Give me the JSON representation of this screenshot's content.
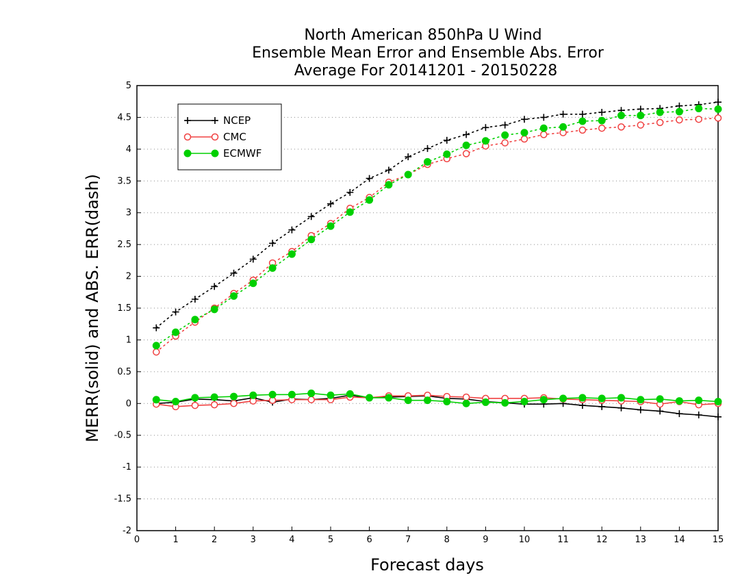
{
  "chart_data": {
    "type": "line",
    "title_lines": [
      "North American 850hPa U Wind",
      "Ensemble Mean Error and Ensemble Abs. Error",
      "Average For 20141201 - 20150228"
    ],
    "xlabel": "Forecast days",
    "ylabel": "MERR(solid) and ABS. ERR(dash)",
    "xlim": [
      0,
      15
    ],
    "ylim": [
      -2,
      5
    ],
    "x_ticks": [
      0,
      1,
      2,
      3,
      4,
      5,
      6,
      7,
      8,
      9,
      10,
      11,
      12,
      13,
      14,
      15
    ],
    "y_ticks": [
      -2,
      -1.5,
      -1,
      -0.5,
      0,
      0.5,
      1,
      1.5,
      2,
      2.5,
      3,
      3.5,
      4,
      4.5,
      5
    ],
    "y_tick_labels": [
      "-2",
      "-1.5",
      "-1",
      "-0.5",
      "0",
      "0.5",
      "1",
      "1.5",
      "2",
      "2.5",
      "3",
      "3.5",
      "4",
      "4.5",
      "5"
    ],
    "grid": "horizontal dotted",
    "legend_position": "top-left",
    "x": [
      0.5,
      1,
      1.5,
      2,
      2.5,
      3,
      3.5,
      4,
      4.5,
      5,
      5.5,
      6,
      6.5,
      7,
      7.5,
      8,
      8.5,
      9,
      9.5,
      10,
      10.5,
      11,
      11.5,
      12,
      12.5,
      13,
      13.5,
      14,
      14.5,
      15
    ],
    "series": [
      {
        "name": "NCEP",
        "color": "#000000",
        "marker": "plus",
        "abs_error": [
          1.19,
          1.44,
          1.64,
          1.84,
          2.05,
          2.27,
          2.52,
          2.73,
          2.94,
          3.14,
          3.32,
          3.54,
          3.67,
          3.88,
          4.01,
          4.14,
          4.23,
          4.34,
          4.38,
          4.47,
          4.5,
          4.55,
          4.55,
          4.58,
          4.61,
          4.63,
          4.64,
          4.68,
          4.7,
          4.74
        ],
        "mean_error": [
          0.0,
          0.02,
          0.07,
          0.06,
          0.04,
          0.09,
          0.02,
          0.07,
          0.06,
          0.08,
          0.13,
          0.09,
          0.1,
          0.11,
          0.12,
          0.08,
          0.07,
          0.03,
          0.01,
          -0.01,
          -0.01,
          0.0,
          -0.03,
          -0.05,
          -0.07,
          -0.1,
          -0.12,
          -0.16,
          -0.18,
          -0.21
        ]
      },
      {
        "name": "CMC",
        "color": "#f04040",
        "marker": "open-circle",
        "abs_error": [
          0.81,
          1.06,
          1.28,
          1.5,
          1.73,
          1.94,
          2.21,
          2.39,
          2.64,
          2.83,
          3.07,
          3.24,
          3.48,
          3.6,
          3.76,
          3.85,
          3.93,
          4.05,
          4.1,
          4.16,
          4.23,
          4.26,
          4.3,
          4.33,
          4.35,
          4.38,
          4.42,
          4.46,
          4.47,
          4.49
        ],
        "mean_error": [
          -0.01,
          -0.05,
          -0.03,
          -0.02,
          0.0,
          0.04,
          0.05,
          0.06,
          0.06,
          0.06,
          0.1,
          0.09,
          0.12,
          0.12,
          0.13,
          0.11,
          0.1,
          0.08,
          0.08,
          0.08,
          0.09,
          0.07,
          0.06,
          0.05,
          0.04,
          0.03,
          -0.01,
          0.03,
          -0.02,
          0.0
        ]
      },
      {
        "name": "ECMWF",
        "color": "#00d000",
        "marker": "filled-circle",
        "abs_error": [
          0.91,
          1.12,
          1.32,
          1.48,
          1.69,
          1.89,
          2.13,
          2.35,
          2.58,
          2.79,
          3.01,
          3.2,
          3.44,
          3.6,
          3.8,
          3.92,
          4.06,
          4.13,
          4.22,
          4.26,
          4.33,
          4.35,
          4.44,
          4.45,
          4.53,
          4.53,
          4.58,
          4.59,
          4.64,
          4.63
        ],
        "mean_error": [
          0.06,
          0.03,
          0.09,
          0.1,
          0.11,
          0.13,
          0.14,
          0.14,
          0.16,
          0.13,
          0.15,
          0.09,
          0.09,
          0.05,
          0.05,
          0.03,
          0.0,
          0.02,
          0.01,
          0.03,
          0.06,
          0.08,
          0.09,
          0.08,
          0.09,
          0.06,
          0.07,
          0.04,
          0.05,
          0.03
        ]
      }
    ]
  }
}
